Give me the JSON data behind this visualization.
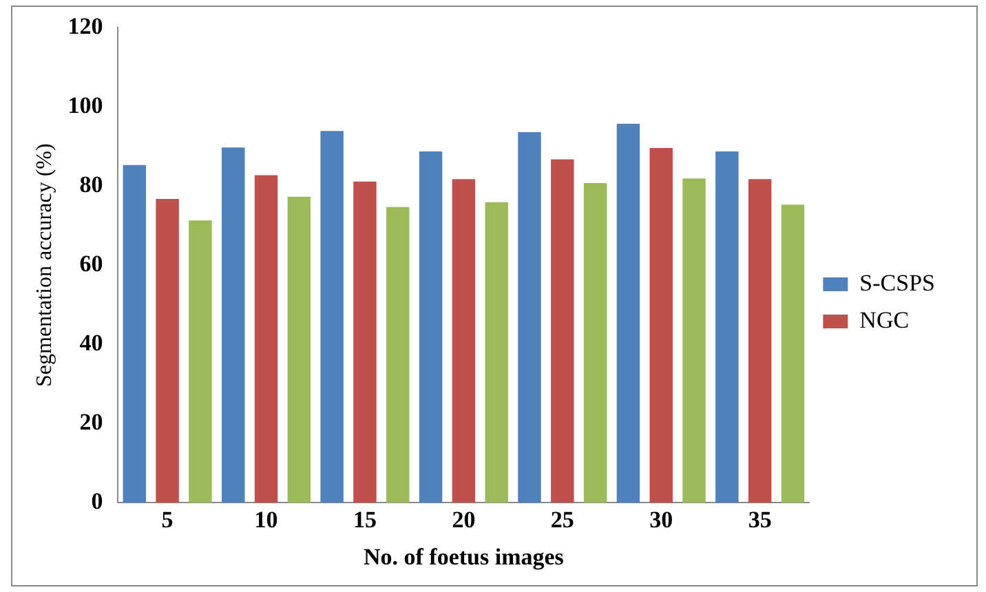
{
  "chart_data": {
    "type": "bar",
    "xlabel": "No. of foetus images",
    "ylabel": "Segmentation accuracy (%)",
    "categories": [
      "5",
      "10",
      "15",
      "20",
      "25",
      "30",
      "35"
    ],
    "series": [
      {
        "name": "S-CSPS",
        "color": "#4f81bd",
        "values": [
          85.3,
          89.7,
          93.9,
          88.7,
          93.6,
          95.7,
          88.7
        ]
      },
      {
        "name": "NGC",
        "color": "#c0504d",
        "values": [
          76.7,
          82.7,
          81.1,
          81.7,
          86.7,
          89.6,
          81.7
        ]
      },
      {
        "color": "#9bbb59",
        "values": [
          71.3,
          77.3,
          74.7,
          75.9,
          80.7,
          81.9,
          75.3
        ]
      }
    ],
    "ylim": [
      0,
      120
    ],
    "yticks": [
      0,
      20,
      40,
      60,
      80,
      100,
      120
    ],
    "grid": false,
    "legend": "right"
  }
}
